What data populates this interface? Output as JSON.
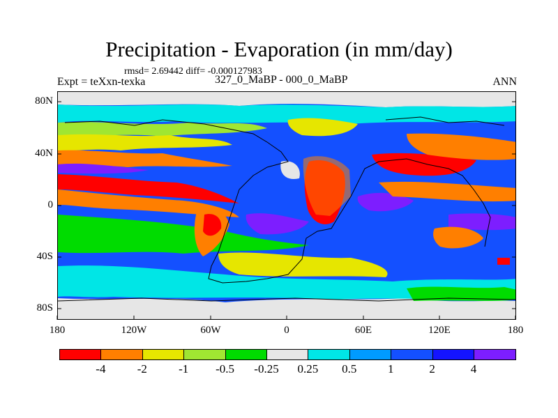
{
  "title": "Precipitation - Evaporation (in mm/day)",
  "stats": "rmsd= 2.69442 diff= -0.000127983",
  "expt": "Expt = teXxn-texka",
  "period": "327_0_MaBP - 000_0_MaBP",
  "season": "ANN",
  "lat_ticks": [
    "80N",
    "40N",
    "0",
    "40S",
    "80S"
  ],
  "lon_ticks": [
    "180",
    "120W",
    "60W",
    "0",
    "60E",
    "120E",
    "180"
  ],
  "colorbar": {
    "colors": [
      "#ff0000",
      "#ff7f00",
      "#e6e600",
      "#a0e632",
      "#00dc00",
      "#e6e6e6",
      "#00e6e6",
      "#009bff",
      "#1450ff",
      "#1414ff",
      "#7d1eff"
    ],
    "labels": [
      "-4",
      "-2",
      "-1",
      "-0.5",
      "-0.25",
      "0.25",
      "0.5",
      "1",
      "2",
      "4"
    ]
  },
  "icons": {
    "map_field": "precipitation-evaporation-field",
    "coastline": "paleo-coastline-outline"
  }
}
